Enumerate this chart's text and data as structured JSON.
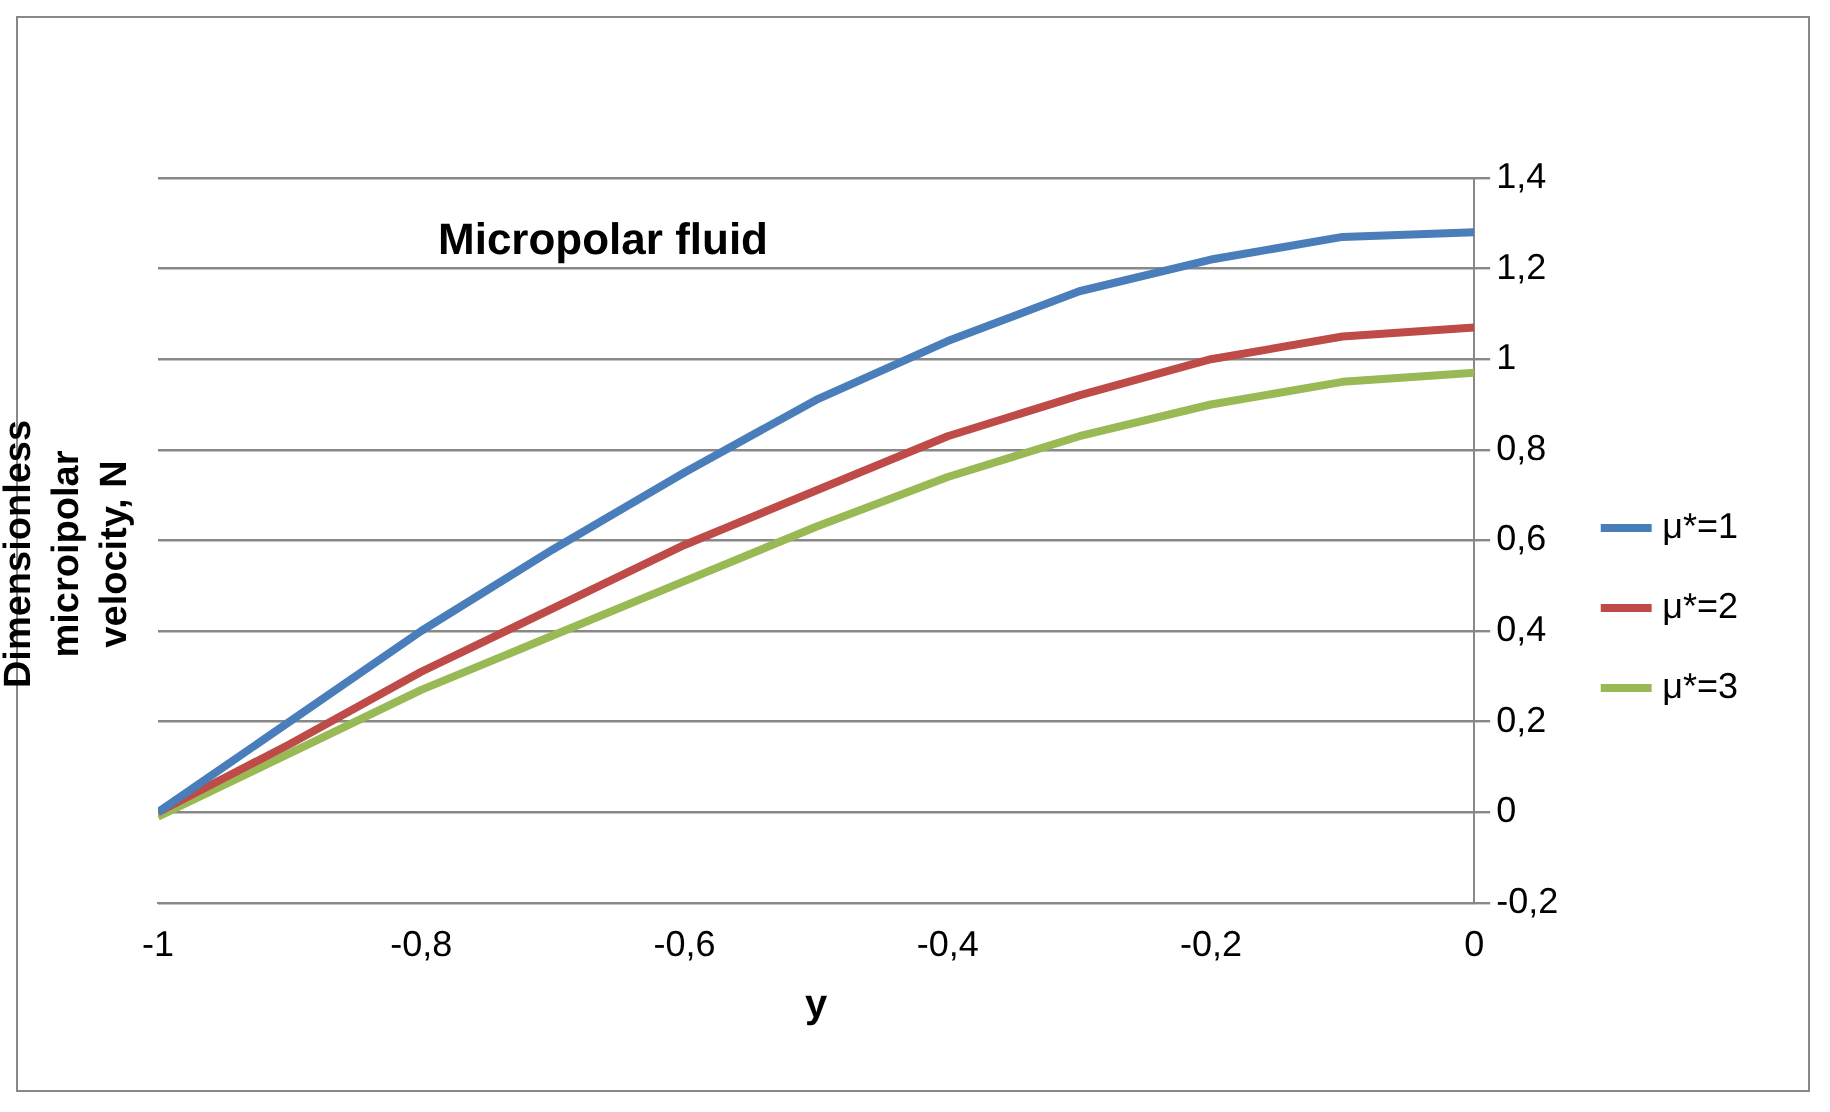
{
  "chart_data": {
    "type": "line",
    "title": "Micropolar fluid",
    "xlabel": "y",
    "ylabel": "Dimensionless microipolar velocity, N",
    "x": [
      -1,
      -0.9,
      -0.8,
      -0.7,
      -0.6,
      -0.5,
      -0.4,
      -0.3,
      -0.2,
      -0.1,
      0
    ],
    "series": [
      {
        "name": "μ*=1",
        "color": "#4a7ebb",
        "values": [
          0,
          0.2,
          0.4,
          0.58,
          0.75,
          0.91,
          1.04,
          1.15,
          1.22,
          1.27,
          1.28
        ]
      },
      {
        "name": "μ*=2",
        "color": "#be4b48",
        "values": [
          0,
          0.15,
          0.31,
          0.45,
          0.59,
          0.71,
          0.83,
          0.92,
          1.0,
          1.05,
          1.07
        ]
      },
      {
        "name": "μ*=3",
        "color": "#98b954",
        "values": [
          -0.01,
          0.13,
          0.27,
          0.39,
          0.51,
          0.63,
          0.74,
          0.83,
          0.9,
          0.95,
          0.97
        ]
      }
    ],
    "xlim": [
      -1,
      0
    ],
    "xticks": [
      {
        "value": -1,
        "label": "-1"
      },
      {
        "value": -0.8,
        "label": "-0,8"
      },
      {
        "value": -0.6,
        "label": "-0,6"
      },
      {
        "value": -0.4,
        "label": "-0,4"
      },
      {
        "value": -0.2,
        "label": "-0,2"
      },
      {
        "value": 0,
        "label": "0"
      }
    ],
    "ylim": [
      -0.2,
      1.4
    ],
    "yticks": [
      {
        "value": -0.2,
        "label": "-0,2"
      },
      {
        "value": 0,
        "label": "0"
      },
      {
        "value": 0.2,
        "label": "0,2"
      },
      {
        "value": 0.4,
        "label": "0,4"
      },
      {
        "value": 0.6,
        "label": "0,6"
      },
      {
        "value": 0.8,
        "label": "0,8"
      },
      {
        "value": 1,
        "label": "1"
      },
      {
        "value": 1.2,
        "label": "1,2"
      },
      {
        "value": 1.4,
        "label": "1,4"
      }
    ],
    "grid": "y",
    "legend": "right",
    "marker": "none",
    "line_style": "solid"
  }
}
